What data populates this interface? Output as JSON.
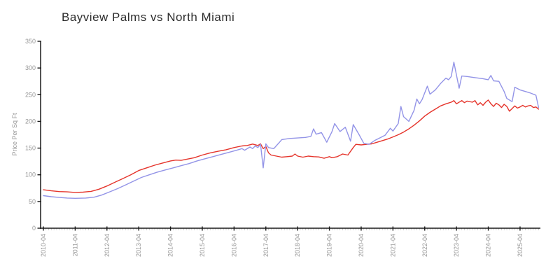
{
  "chart_data": {
    "type": "line",
    "title": "Bayview Palms vs North Miami",
    "xlabel": "",
    "ylabel": "Price Per Sq Ft",
    "ylim": [
      0,
      350
    ],
    "y_ticks": [
      0,
      50,
      100,
      150,
      200,
      250,
      300,
      350
    ],
    "x_tick_labels": [
      "2010-04",
      "2011-04",
      "2012-04",
      "2013-04",
      "2014-04",
      "2015-04",
      "2016-04",
      "2017-04",
      "2018-04",
      "2019-04",
      "2020-04",
      "2021-04",
      "2022-04",
      "2023-04",
      "2024-04",
      "2025-04"
    ],
    "x_start": "2010-04",
    "x_end": "2025-11",
    "x_minor_tick_interval_months": 1,
    "grid": false,
    "legend_position": "none",
    "colors": {
      "axis": "#1a1a1a",
      "minor_tick": "#c4c4c4",
      "label_gray": "#969696",
      "series_red": "#e5342b",
      "series_blue": "#9394e7"
    },
    "series": [
      {
        "name": "Bayview Palms",
        "color": "#e5342b",
        "points": [
          [
            "2010-04",
            72
          ],
          [
            "2010-07",
            70
          ],
          [
            "2010-10",
            68.5
          ],
          [
            "2011-01",
            68
          ],
          [
            "2011-04",
            67
          ],
          [
            "2011-07",
            67.5
          ],
          [
            "2011-10",
            69
          ],
          [
            "2012-01",
            73
          ],
          [
            "2012-04",
            79
          ],
          [
            "2012-07",
            86
          ],
          [
            "2012-10",
            93
          ],
          [
            "2013-01",
            100
          ],
          [
            "2013-04",
            108
          ],
          [
            "2013-07",
            113
          ],
          [
            "2013-10",
            118
          ],
          [
            "2014-01",
            122
          ],
          [
            "2014-04",
            126
          ],
          [
            "2014-06",
            127.5
          ],
          [
            "2014-08",
            127
          ],
          [
            "2014-10",
            129
          ],
          [
            "2015-01",
            132
          ],
          [
            "2015-04",
            137
          ],
          [
            "2015-07",
            141
          ],
          [
            "2015-10",
            144
          ],
          [
            "2016-01",
            147
          ],
          [
            "2016-04",
            151
          ],
          [
            "2016-07",
            154
          ],
          [
            "2016-09",
            155
          ],
          [
            "2016-11",
            157.5
          ],
          [
            "2017-01",
            155
          ],
          [
            "2017-02",
            158
          ],
          [
            "2017-03",
            149
          ],
          [
            "2017-04",
            153
          ],
          [
            "2017-05",
            141
          ],
          [
            "2017-06",
            137
          ],
          [
            "2017-08",
            135
          ],
          [
            "2017-10",
            133
          ],
          [
            "2017-12",
            134
          ],
          [
            "2018-02",
            135
          ],
          [
            "2018-03",
            139
          ],
          [
            "2018-04",
            135
          ],
          [
            "2018-06",
            133
          ],
          [
            "2018-08",
            135
          ],
          [
            "2018-10",
            134
          ],
          [
            "2018-12",
            133.5
          ],
          [
            "2019-02",
            131
          ],
          [
            "2019-04",
            134
          ],
          [
            "2019-05",
            132
          ],
          [
            "2019-07",
            134
          ],
          [
            "2019-09",
            139
          ],
          [
            "2019-11",
            137
          ],
          [
            "2020-01",
            151
          ],
          [
            "2020-02",
            157
          ],
          [
            "2020-04",
            156
          ],
          [
            "2020-06",
            157
          ],
          [
            "2020-08",
            158
          ],
          [
            "2020-10",
            161
          ],
          [
            "2020-12",
            164
          ],
          [
            "2021-02",
            167
          ],
          [
            "2021-04",
            171
          ],
          [
            "2021-06",
            175
          ],
          [
            "2021-08",
            180
          ],
          [
            "2021-10",
            186
          ],
          [
            "2021-12",
            193
          ],
          [
            "2022-02",
            201
          ],
          [
            "2022-04",
            210
          ],
          [
            "2022-06",
            217
          ],
          [
            "2022-08",
            223
          ],
          [
            "2022-10",
            229
          ],
          [
            "2022-12",
            233
          ],
          [
            "2023-02",
            236
          ],
          [
            "2023-03",
            239
          ],
          [
            "2023-04",
            233
          ],
          [
            "2023-06",
            239
          ],
          [
            "2023-07",
            235
          ],
          [
            "2023-08",
            238
          ],
          [
            "2023-10",
            236
          ],
          [
            "2023-11",
            239
          ],
          [
            "2023-12",
            231
          ],
          [
            "2024-01",
            235
          ],
          [
            "2024-02",
            230
          ],
          [
            "2024-03",
            236
          ],
          [
            "2024-04",
            240
          ],
          [
            "2024-05",
            233
          ],
          [
            "2024-06",
            228
          ],
          [
            "2024-07",
            234
          ],
          [
            "2024-08",
            231
          ],
          [
            "2024-09",
            226
          ],
          [
            "2024-10",
            232
          ],
          [
            "2024-11",
            228
          ],
          [
            "2024-12",
            219
          ],
          [
            "2025-01",
            224
          ],
          [
            "2025-02",
            229
          ],
          [
            "2025-03",
            225
          ],
          [
            "2025-04",
            227
          ],
          [
            "2025-05",
            230
          ],
          [
            "2025-06",
            227
          ],
          [
            "2025-07",
            229
          ],
          [
            "2025-08",
            230
          ],
          [
            "2025-09",
            226
          ],
          [
            "2025-10",
            227
          ],
          [
            "2025-11",
            223
          ]
        ]
      },
      {
        "name": "North Miami",
        "color": "#9394e7",
        "points": [
          [
            "2010-04",
            61
          ],
          [
            "2010-07",
            59
          ],
          [
            "2010-10",
            57.5
          ],
          [
            "2011-01",
            56.5
          ],
          [
            "2011-04",
            56
          ],
          [
            "2011-08",
            56.5
          ],
          [
            "2011-11",
            58
          ],
          [
            "2012-02",
            62
          ],
          [
            "2012-05",
            68
          ],
          [
            "2012-08",
            74
          ],
          [
            "2012-11",
            81
          ],
          [
            "2013-02",
            88
          ],
          [
            "2013-05",
            95
          ],
          [
            "2013-08",
            100
          ],
          [
            "2013-11",
            105
          ],
          [
            "2014-02",
            109
          ],
          [
            "2014-05",
            113
          ],
          [
            "2014-08",
            117
          ],
          [
            "2014-11",
            121
          ],
          [
            "2015-02",
            126
          ],
          [
            "2015-05",
            130
          ],
          [
            "2015-08",
            134
          ],
          [
            "2015-11",
            138
          ],
          [
            "2016-02",
            142
          ],
          [
            "2016-05",
            146
          ],
          [
            "2016-07",
            149
          ],
          [
            "2016-08",
            146
          ],
          [
            "2016-10",
            152
          ],
          [
            "2016-11",
            149
          ],
          [
            "2016-12",
            154
          ],
          [
            "2017-01",
            151
          ],
          [
            "2017-02",
            157
          ],
          [
            "2017-03",
            113
          ],
          [
            "2017-04",
            158
          ],
          [
            "2017-05",
            151
          ],
          [
            "2017-07",
            149
          ],
          [
            "2017-09",
            160
          ],
          [
            "2017-10",
            166
          ],
          [
            "2018-01",
            168
          ],
          [
            "2018-04",
            169
          ],
          [
            "2018-07",
            170
          ],
          [
            "2018-09",
            172
          ],
          [
            "2018-10",
            186
          ],
          [
            "2018-11",
            176
          ],
          [
            "2019-01",
            179
          ],
          [
            "2019-03",
            161
          ],
          [
            "2019-05",
            181
          ],
          [
            "2019-06",
            196
          ],
          [
            "2019-08",
            181
          ],
          [
            "2019-10",
            189
          ],
          [
            "2019-12",
            163
          ],
          [
            "2020-01",
            194
          ],
          [
            "2020-03",
            177
          ],
          [
            "2020-05",
            159
          ],
          [
            "2020-07",
            157
          ],
          [
            "2020-09",
            164
          ],
          [
            "2020-11",
            169
          ],
          [
            "2021-01",
            174
          ],
          [
            "2021-03",
            187
          ],
          [
            "2021-04",
            182
          ],
          [
            "2021-06",
            196
          ],
          [
            "2021-07",
            228
          ],
          [
            "2021-08",
            209
          ],
          [
            "2021-10",
            200
          ],
          [
            "2021-12",
            221
          ],
          [
            "2022-01",
            242
          ],
          [
            "2022-02",
            233
          ],
          [
            "2022-03",
            241
          ],
          [
            "2022-05",
            266
          ],
          [
            "2022-06",
            251
          ],
          [
            "2022-08",
            259
          ],
          [
            "2022-10",
            271
          ],
          [
            "2022-12",
            281
          ],
          [
            "2023-01",
            278
          ],
          [
            "2023-02",
            284
          ],
          [
            "2023-03",
            311
          ],
          [
            "2023-05",
            262
          ],
          [
            "2023-06",
            285
          ],
          [
            "2023-08",
            284
          ],
          [
            "2023-11",
            282
          ],
          [
            "2024-02",
            280
          ],
          [
            "2024-04",
            278
          ],
          [
            "2024-05",
            286
          ],
          [
            "2024-06",
            276
          ],
          [
            "2024-08",
            275
          ],
          [
            "2024-10",
            256
          ],
          [
            "2024-11",
            243
          ],
          [
            "2025-01",
            237
          ],
          [
            "2025-02",
            264
          ],
          [
            "2025-04",
            259
          ],
          [
            "2025-06",
            256
          ],
          [
            "2025-08",
            253
          ],
          [
            "2025-10",
            249
          ],
          [
            "2025-11",
            226
          ]
        ]
      }
    ]
  }
}
